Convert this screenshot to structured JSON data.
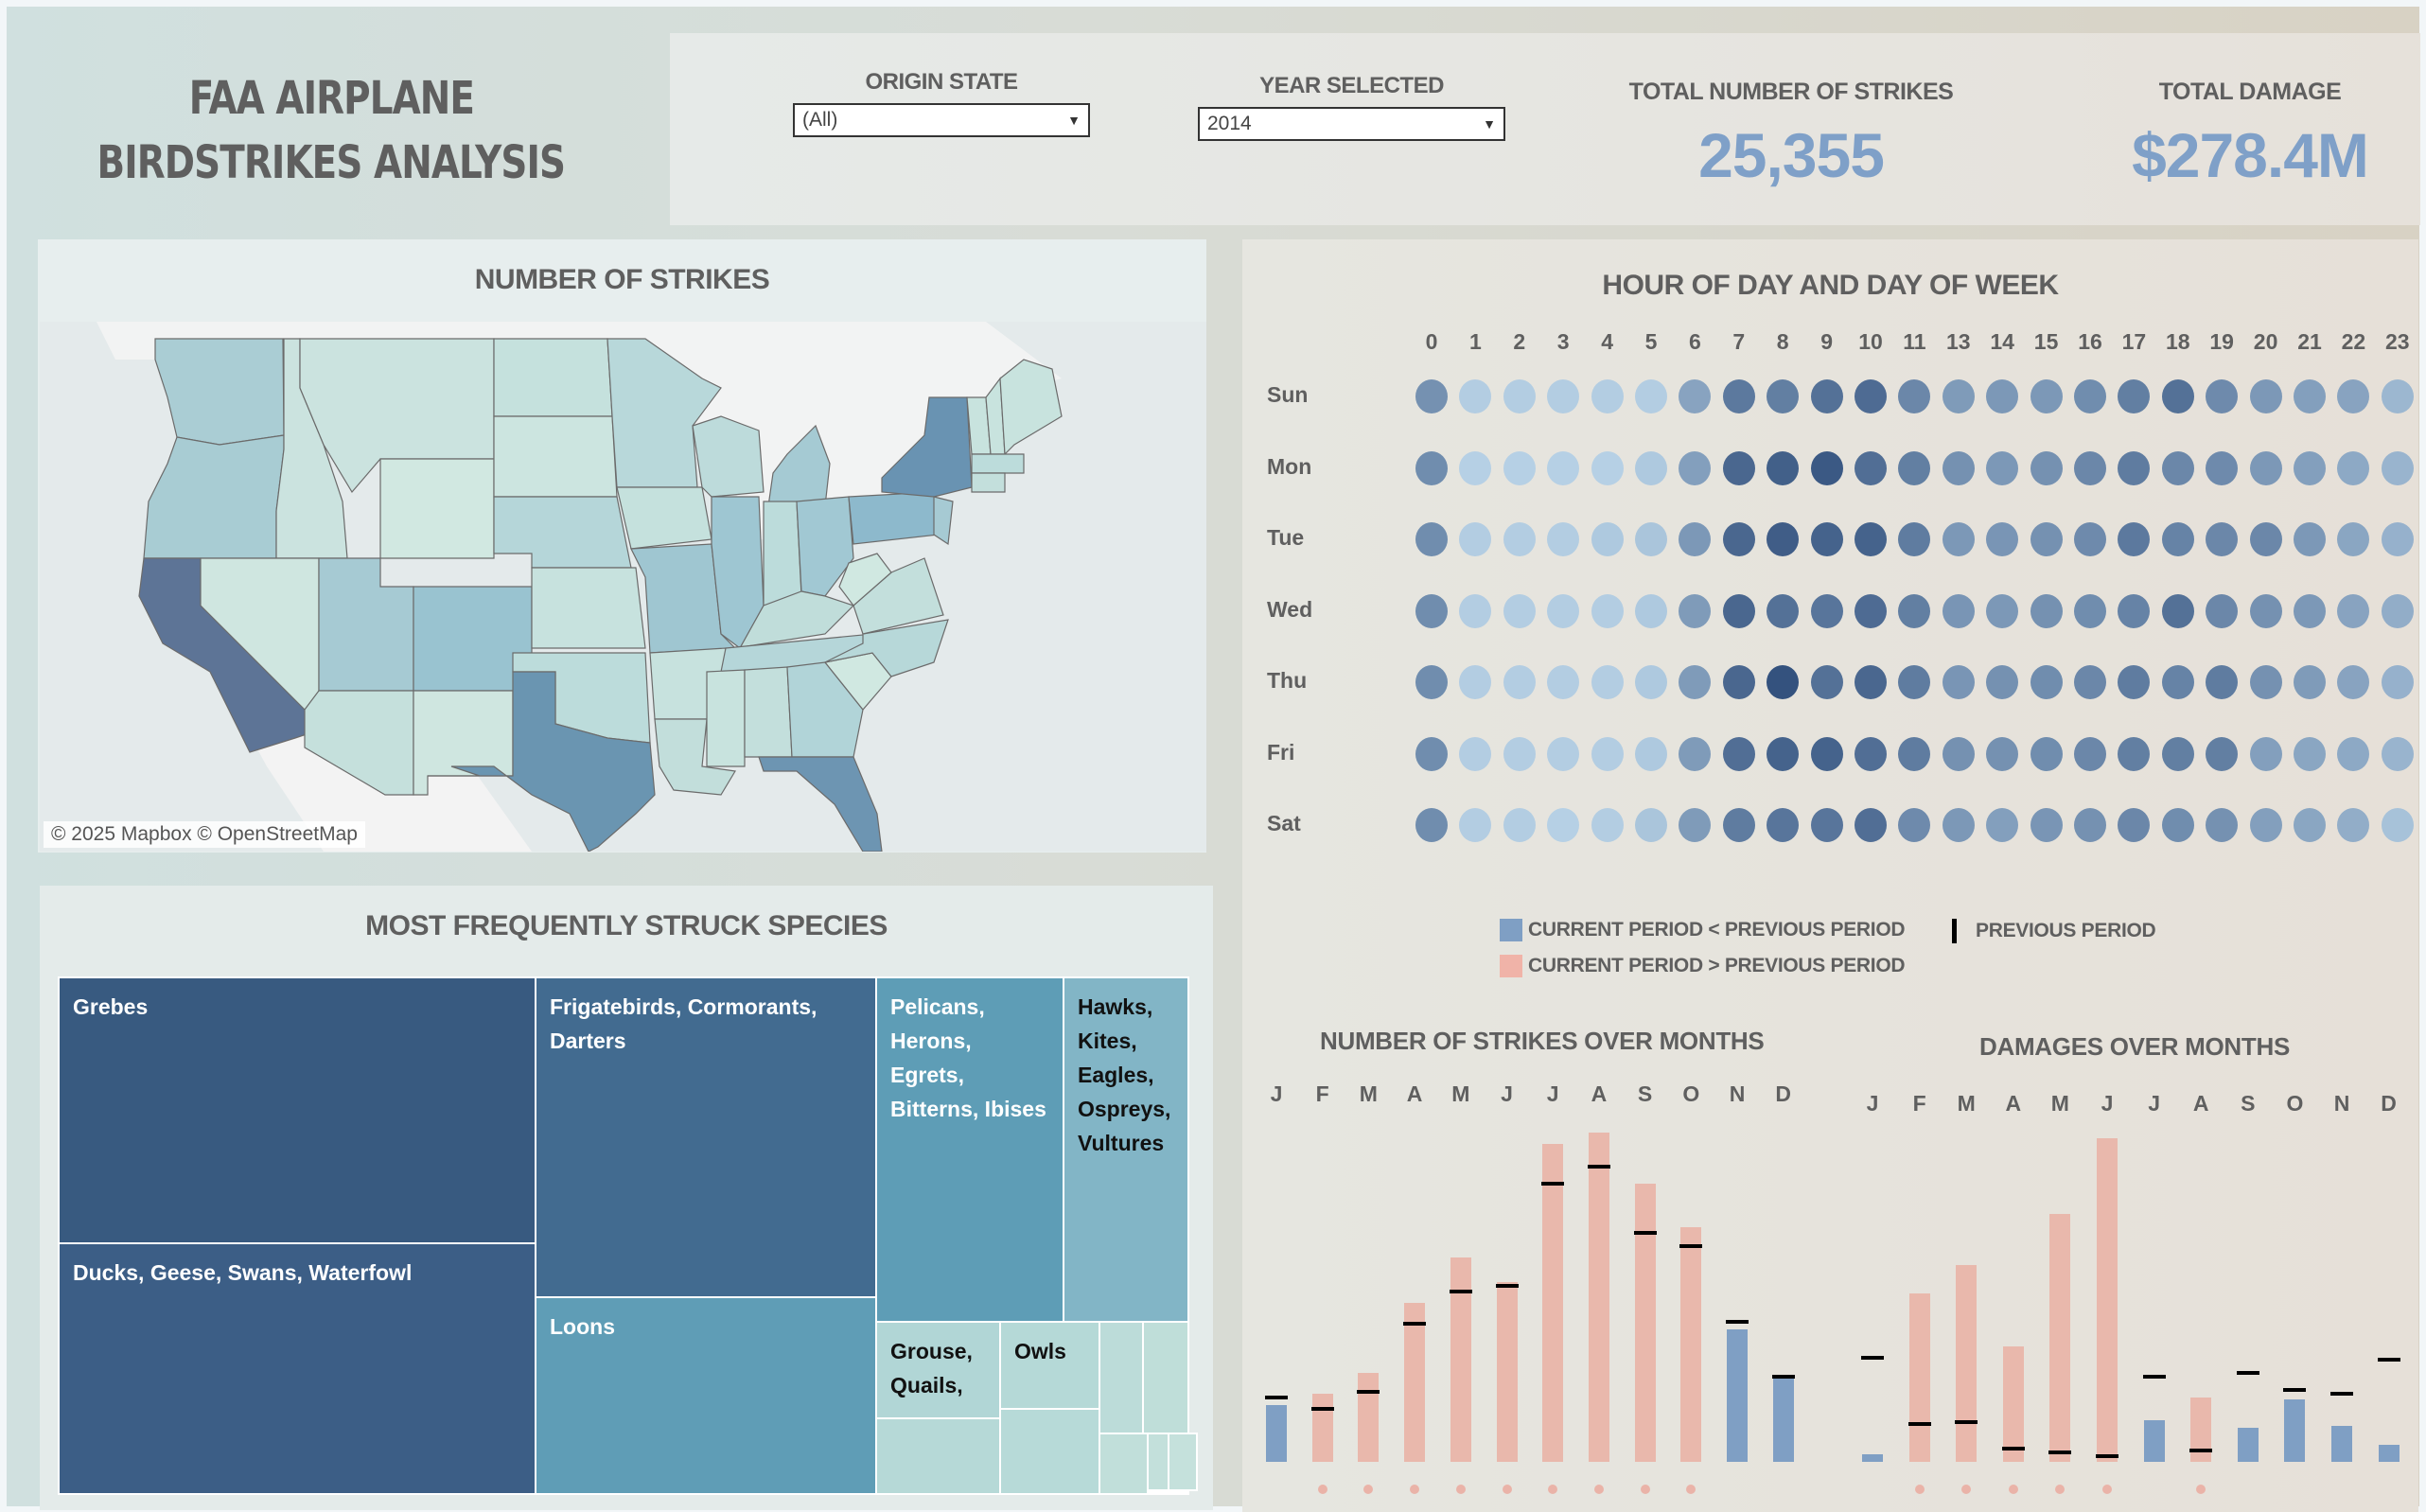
{
  "title": {
    "line1": "FAA AIRPLANE",
    "line2": "BIRDSTRIKES ANALYSIS"
  },
  "filters": {
    "origin_state": {
      "label": "ORIGIN STATE",
      "value": "(All)"
    },
    "year_selected": {
      "label": "YEAR SELECTED",
      "value": "2014"
    }
  },
  "kpis": {
    "total_strikes": {
      "label": "TOTAL NUMBER OF STRIKES",
      "value": "25,355"
    },
    "total_damage": {
      "label": "TOTAL DAMAGE",
      "value": "$278.4M"
    }
  },
  "colors": {
    "accent": "#7fa0c8",
    "bar_lower": "#7f9fc4",
    "bar_higher": "#e9b8ac",
    "previous_marker": "#000000"
  },
  "map": {
    "title": "NUMBER OF STRIKES",
    "attribution": "© 2025 Mapbox  © OpenStreetMap",
    "highlighted_states": [
      {
        "state": "California",
        "level": "highest"
      },
      {
        "state": "Texas",
        "level": "high"
      },
      {
        "state": "Florida",
        "level": "high"
      },
      {
        "state": "New York",
        "level": "high"
      },
      {
        "state": "Colorado",
        "level": "medium"
      },
      {
        "state": "Illinois",
        "level": "medium"
      },
      {
        "state": "Pennsylvania",
        "level": "medium"
      },
      {
        "state": "Missouri",
        "level": "medium"
      },
      {
        "state": "Ohio",
        "level": "medium"
      },
      {
        "state": "Michigan",
        "level": "medium"
      }
    ]
  },
  "species": {
    "title": "MOST FREQUENTLY STRUCK SPECIES",
    "items": [
      {
        "label": "Grebes"
      },
      {
        "label": "Ducks, Geese, Swans, Waterfowl"
      },
      {
        "label": "Frigatebirds, Cormorants, Darters"
      },
      {
        "label": "Loons"
      },
      {
        "label": "Pelicans, Herons, Egrets, Bitterns, Ibises"
      },
      {
        "label": "Hawks, Kites, Eagles, Ospreys, Vultures"
      },
      {
        "label": "Grouse, Quails,"
      },
      {
        "label": "Owls"
      }
    ]
  },
  "heatmap": {
    "title": "HOUR OF DAY AND DAY OF WEEK",
    "hours": [
      "0",
      "1",
      "2",
      "3",
      "4",
      "5",
      "6",
      "7",
      "8",
      "9",
      "10",
      "11",
      "13",
      "14",
      "15",
      "16",
      "17",
      "18",
      "19",
      "20",
      "21",
      "22",
      "23"
    ],
    "days": [
      "Sun",
      "Mon",
      "Tue",
      "Wed",
      "Thu",
      "Fri",
      "Sat"
    ],
    "intensity": [
      [
        0.55,
        0.12,
        0.12,
        0.12,
        0.12,
        0.12,
        0.42,
        0.72,
        0.68,
        0.78,
        0.82,
        0.62,
        0.48,
        0.5,
        0.5,
        0.58,
        0.68,
        0.78,
        0.6,
        0.5,
        0.45,
        0.42,
        0.28
      ],
      [
        0.58,
        0.1,
        0.1,
        0.1,
        0.1,
        0.15,
        0.45,
        0.85,
        0.9,
        0.95,
        0.8,
        0.68,
        0.55,
        0.5,
        0.55,
        0.62,
        0.7,
        0.62,
        0.6,
        0.5,
        0.45,
        0.38,
        0.3
      ],
      [
        0.58,
        0.12,
        0.12,
        0.12,
        0.15,
        0.18,
        0.5,
        0.85,
        0.92,
        0.88,
        0.88,
        0.7,
        0.5,
        0.52,
        0.55,
        0.6,
        0.72,
        0.65,
        0.62,
        0.62,
        0.5,
        0.4,
        0.32
      ],
      [
        0.58,
        0.12,
        0.12,
        0.12,
        0.12,
        0.15,
        0.48,
        0.85,
        0.78,
        0.75,
        0.82,
        0.68,
        0.52,
        0.5,
        0.55,
        0.58,
        0.65,
        0.78,
        0.62,
        0.55,
        0.5,
        0.42,
        0.35
      ],
      [
        0.58,
        0.12,
        0.12,
        0.12,
        0.12,
        0.15,
        0.48,
        0.85,
        1.0,
        0.78,
        0.85,
        0.7,
        0.52,
        0.55,
        0.58,
        0.62,
        0.7,
        0.65,
        0.7,
        0.55,
        0.48,
        0.42,
        0.32
      ],
      [
        0.58,
        0.12,
        0.12,
        0.12,
        0.12,
        0.15,
        0.48,
        0.8,
        0.88,
        0.88,
        0.8,
        0.7,
        0.55,
        0.55,
        0.58,
        0.62,
        0.68,
        0.68,
        0.68,
        0.45,
        0.4,
        0.38,
        0.3
      ],
      [
        0.58,
        0.12,
        0.12,
        0.1,
        0.12,
        0.18,
        0.48,
        0.7,
        0.75,
        0.75,
        0.8,
        0.6,
        0.5,
        0.45,
        0.52,
        0.55,
        0.62,
        0.58,
        0.55,
        0.45,
        0.4,
        0.35,
        0.2
      ]
    ]
  },
  "legend": {
    "lower": "CURRENT PERIOD < PREVIOUS PERIOD",
    "higher": "CURRENT PERIOD > PREVIOUS PERIOD",
    "previous": "PREVIOUS PERIOD"
  },
  "chart_data": [
    {
      "type": "bar",
      "title": "NUMBER OF STRIKES OVER MONTHS",
      "categories": [
        "J",
        "F",
        "M",
        "A",
        "M",
        "J",
        "J",
        "A",
        "S",
        "O",
        "N",
        "D"
      ],
      "series": [
        {
          "name": "Current period",
          "values": [
            60,
            72,
            94,
            168,
            216,
            190,
            336,
            348,
            294,
            248,
            140,
            88
          ]
        },
        {
          "name": "Previous period",
          "values": [
            68,
            56,
            74,
            146,
            180,
            186,
            294,
            312,
            242,
            228,
            148,
            90
          ]
        }
      ],
      "units": "relative (no axis shown)",
      "xlabel": "",
      "ylabel": "",
      "ylim": [
        0,
        360
      ],
      "legend": "top",
      "change_indicator_months": [
        1,
        2,
        3,
        4,
        5,
        6,
        7,
        8,
        9
      ]
    },
    {
      "type": "bar",
      "title": "DAMAGES OVER MONTHS",
      "categories": [
        "J",
        "F",
        "M",
        "A",
        "M",
        "J",
        "J",
        "A",
        "S",
        "O",
        "N",
        "D"
      ],
      "series": [
        {
          "name": "Current period",
          "values": [
            8,
            178,
            208,
            122,
            262,
            342,
            44,
            68,
            36,
            66,
            38,
            18
          ]
        },
        {
          "name": "Previous period",
          "values": [
            110,
            40,
            42,
            14,
            10,
            6,
            90,
            12,
            94,
            76,
            72,
            108
          ]
        }
      ],
      "units": "relative (no axis shown)",
      "xlabel": "",
      "ylabel": "",
      "ylim": [
        0,
        360
      ],
      "legend": "top",
      "change_indicator_months": [
        1,
        2,
        3,
        4,
        5,
        7
      ]
    }
  ]
}
